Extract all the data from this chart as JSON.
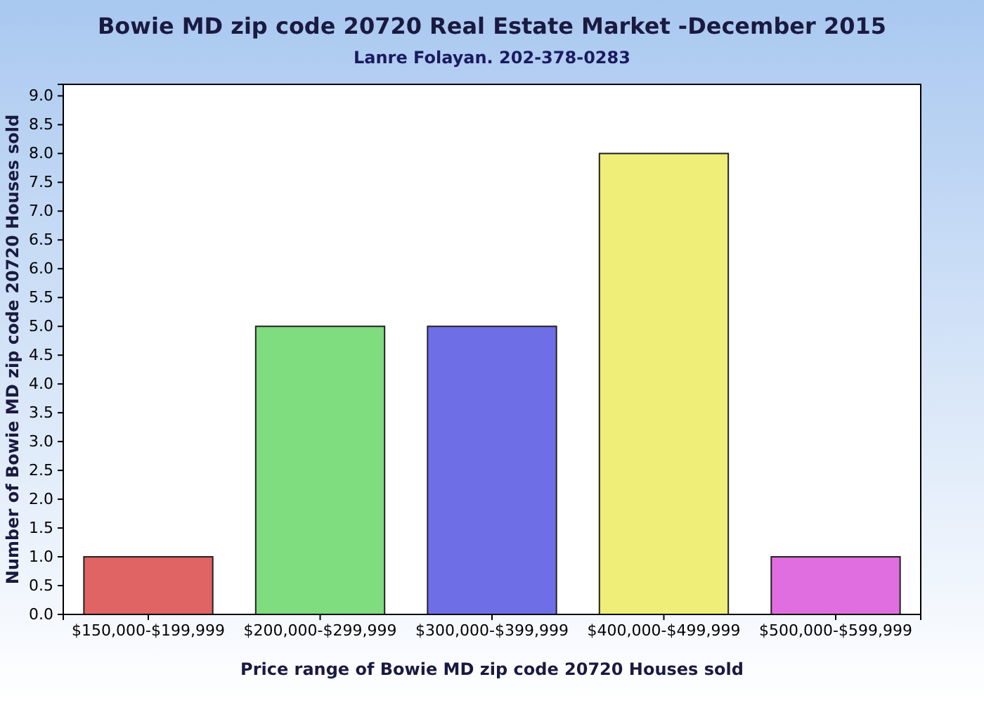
{
  "chart_data": {
    "type": "bar",
    "title": "Bowie MD zip code 20720 Real Estate Market -December 2015",
    "subtitle": "Lanre Folayan. 202-378-0283",
    "xlabel": "Price range of Bowie MD zip code 20720 Houses sold",
    "ylabel": "Number of Bowie MD zip code 20720 Houses sold",
    "categories": [
      "$150,000-$199,999",
      "$200,000-$299,999",
      "$300,000-$399,999",
      "$400,000-$499,999",
      "$500,000-$599,999"
    ],
    "values": [
      1,
      5,
      5,
      8,
      1
    ],
    "colors": [
      "#e06464",
      "#7fdc7f",
      "#6e6ee6",
      "#eeee78",
      "#e06ee0"
    ],
    "ylim": [
      0,
      9.2
    ],
    "yticks": [
      {
        "value": 0,
        "label": "0.0"
      },
      {
        "value": 0.5,
        "label": "0.5"
      },
      {
        "value": 1,
        "label": "1.0"
      },
      {
        "value": 1.5,
        "label": "1.5"
      },
      {
        "value": 2,
        "label": "2.0"
      },
      {
        "value": 2.5,
        "label": "2.5"
      },
      {
        "value": 3,
        "label": "3.0"
      },
      {
        "value": 3.5,
        "label": "3.5"
      },
      {
        "value": 4,
        "label": "4.0"
      },
      {
        "value": 4.5,
        "label": "4.5"
      },
      {
        "value": 5,
        "label": "5.0"
      },
      {
        "value": 5.5,
        "label": "5.5"
      },
      {
        "value": 6,
        "label": "6.0"
      },
      {
        "value": 6.5,
        "label": "6.5"
      },
      {
        "value": 7,
        "label": "7.0"
      },
      {
        "value": 7.5,
        "label": "7.5"
      },
      {
        "value": 8,
        "label": "8.0"
      },
      {
        "value": 8.5,
        "label": "8.5"
      },
      {
        "value": 9,
        "label": "9.0"
      }
    ],
    "grid": false
  }
}
